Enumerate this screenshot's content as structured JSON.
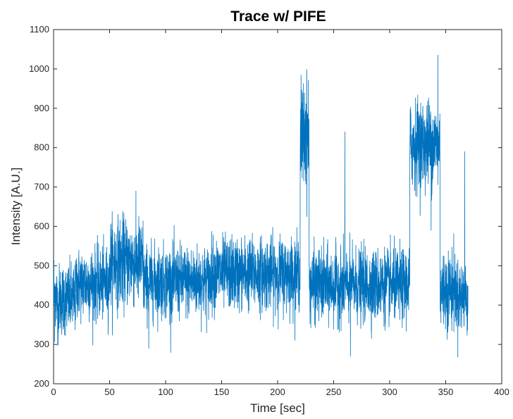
{
  "chart_data": {
    "type": "line",
    "title": "Trace w/ PIFE",
    "xlabel": "Time [sec]",
    "ylabel": "Intensity [A.U.]",
    "xlim": [
      0,
      400
    ],
    "ylim": [
      200,
      1100
    ],
    "x_ticks": [
      "0",
      "50",
      "100",
      "150",
      "200",
      "250",
      "300",
      "350",
      "400"
    ],
    "y_ticks": [
      "200",
      "300",
      "400",
      "500",
      "600",
      "700",
      "800",
      "900",
      "1000",
      "1100"
    ],
    "grid": false,
    "line_color": "#0072BD",
    "series": [
      {
        "x_start": 0,
        "x_end": 370,
        "segments": [
          {
            "x0": 0,
            "x1": 2,
            "mean": 430,
            "spread": 60
          },
          {
            "x0": 2,
            "x1": 20,
            "mean": 415,
            "spread": 45
          },
          {
            "x0": 20,
            "x1": 50,
            "mean": 455,
            "spread": 45
          },
          {
            "x0": 50,
            "x1": 80,
            "mean": 510,
            "spread": 55
          },
          {
            "x0": 80,
            "x1": 140,
            "mean": 460,
            "spread": 45
          },
          {
            "x0": 140,
            "x1": 220,
            "mean": 480,
            "spread": 45
          },
          {
            "x0": 220,
            "x1": 228,
            "mean": 830,
            "spread": 70
          },
          {
            "x0": 228,
            "x1": 318,
            "mean": 450,
            "spread": 45
          },
          {
            "x0": 318,
            "x1": 345,
            "mean": 810,
            "spread": 55
          },
          {
            "x0": 345,
            "x1": 360,
            "mean": 440,
            "spread": 50
          },
          {
            "x0": 360,
            "x1": 370,
            "mean": 420,
            "spread": 45
          }
        ],
        "spikes": [
          {
            "x": 226,
            "y": 990
          },
          {
            "x": 260,
            "y": 840
          },
          {
            "x": 343,
            "y": 1035
          },
          {
            "x": 367,
            "y": 790
          },
          {
            "x": 337,
            "y": 590
          },
          {
            "x": 265,
            "y": 270
          },
          {
            "x": 4,
            "y": 300
          },
          {
            "x": 85,
            "y": 290
          }
        ]
      }
    ]
  }
}
